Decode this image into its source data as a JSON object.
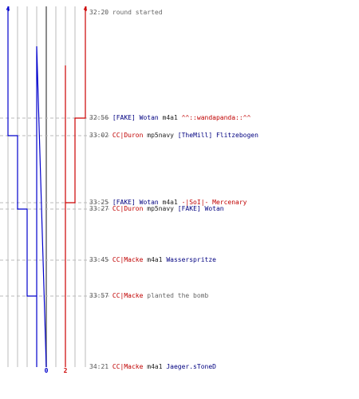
{
  "team_colors": {
    "red": "#cc0000",
    "blue": "#0000cc"
  },
  "chart_data": {
    "type": "line",
    "title": "",
    "xlabel": "",
    "ylabel": "",
    "series": [
      {
        "values": [
          4,
          4,
          3,
          3,
          2,
          2,
          1,
          1,
          0
        ]
      },
      {
        "values": [
          4,
          3,
          3,
          2,
          2,
          2,
          2,
          2,
          2
        ]
      }
    ],
    "axis_ticks": {
      "top_blue": "4",
      "top_red": "4",
      "bottom_blue": "0",
      "bottom_red": "2"
    }
  },
  "events": [
    {
      "time": "32:20",
      "parts": [
        {
          "text": "round started",
          "color": "gray"
        }
      ]
    },
    {
      "time": "32:56",
      "parts": [
        {
          "text": "[FAKE] Wotan",
          "color": "blue"
        },
        {
          "text": " m4a1 ",
          "color": "black"
        },
        {
          "text": "^^::wandapanda::^^",
          "color": "red"
        }
      ]
    },
    {
      "time": "33:02",
      "parts": [
        {
          "text": "CC|Duron",
          "color": "red"
        },
        {
          "text": " mp5navy ",
          "color": "black"
        },
        {
          "text": "[TheMill] Flitzebogen",
          "color": "blue"
        }
      ]
    },
    {
      "time": "33:25",
      "parts": [
        {
          "text": "[FAKE] Wotan",
          "color": "blue"
        },
        {
          "text": " m4a1 ",
          "color": "black"
        },
        {
          "text": "-|SoI|- Mercenary",
          "color": "red"
        }
      ]
    },
    {
      "time": "33:27",
      "parts": [
        {
          "text": "CC|Duron",
          "color": "red"
        },
        {
          "text": " mp5navy ",
          "color": "black"
        },
        {
          "text": "[FAKE] Wotan",
          "color": "blue"
        }
      ]
    },
    {
      "time": "33:45",
      "parts": [
        {
          "text": "CC|Macke",
          "color": "red"
        },
        {
          "text": " m4a1 ",
          "color": "black"
        },
        {
          "text": "Wasserspritze",
          "color": "blue"
        }
      ]
    },
    {
      "time": "33:57",
      "parts": [
        {
          "text": "CC|Macke",
          "color": "red"
        },
        {
          "text": " planted the bomb",
          "color": "gray"
        }
      ]
    },
    {
      "time": "34:21",
      "parts": [
        {
          "text": "CC|Macke",
          "color": "red"
        },
        {
          "text": " m4a1 ",
          "color": "black"
        },
        {
          "text": "Jaeger.sToneD",
          "color": "blue"
        }
      ]
    }
  ]
}
